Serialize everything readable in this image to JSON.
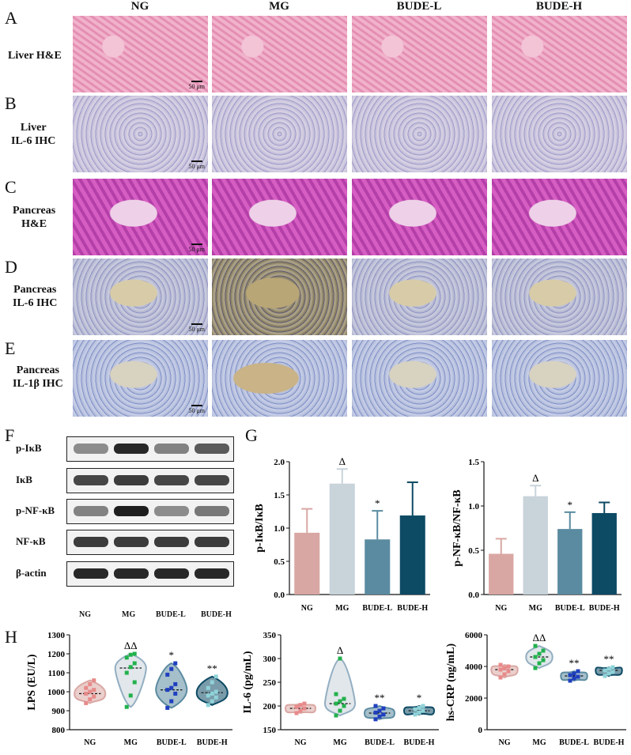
{
  "panel_letters": [
    "A",
    "B",
    "C",
    "D",
    "E",
    "F",
    "G",
    "H"
  ],
  "columns": [
    "NG",
    "MG",
    "BUDE-L",
    "BUDE-H"
  ],
  "rows": [
    {
      "l1": "Liver H&E",
      "l2": ""
    },
    {
      "l1": "Liver",
      "l2": "IL-6 IHC"
    },
    {
      "l1": "Pancreas",
      "l2": "H&E"
    },
    {
      "l1": "Pancreas",
      "l2": "IL-6 IHC"
    },
    {
      "l1": "Pancreas",
      "l2": "IL-1β IHC"
    }
  ],
  "scale_bar": "50 μm",
  "western": {
    "bands": [
      "p-IκB",
      "IκB",
      "p-NF-κB",
      "NF-κB",
      "β-actin"
    ],
    "lanes": [
      "NG",
      "MG",
      "BUDE-L",
      "BUDE-H"
    ]
  },
  "colors": {
    "NG": "#d9a7a3",
    "MG": "#c8d3da",
    "BUDE-L": "#5b8ba0",
    "BUDE-H": "#0d4a64"
  },
  "chart_data": [
    {
      "type": "bar",
      "ylabel": "p-IκB/IκB",
      "categories": [
        "NG",
        "MG",
        "BUDE-L",
        "BUDE-H"
      ],
      "values": [
        0.93,
        1.67,
        0.83,
        1.19
      ],
      "errors": [
        0.36,
        0.22,
        0.43,
        0.5
      ],
      "ylim": [
        0,
        2.0
      ],
      "yticks": [
        "0.0",
        "0.5",
        "1.0",
        "1.5",
        "2.0"
      ],
      "marks": [
        "",
        "Δ",
        "*",
        ""
      ]
    },
    {
      "type": "bar",
      "ylabel": "p-NF-κB/NF-κB",
      "categories": [
        "NG",
        "MG",
        "BUDE-L",
        "BUDE-H"
      ],
      "values": [
        0.46,
        1.11,
        0.74,
        0.92
      ],
      "errors": [
        0.17,
        0.12,
        0.19,
        0.12
      ],
      "ylim": [
        0,
        1.5
      ],
      "yticks": [
        "0.0",
        "0.5",
        "1.0",
        "1.5"
      ],
      "marks": [
        "",
        "Δ",
        "*",
        ""
      ]
    },
    {
      "type": "violin",
      "ylabel": "LPS (EU/L)",
      "categories": [
        "NG",
        "MG",
        "BUDE-L",
        "BUDE-H"
      ],
      "ylim": [
        800,
        1300
      ],
      "yticks": [
        "800",
        "900",
        "1000",
        "1100",
        "1200",
        "1300"
      ],
      "medians": [
        990,
        1125,
        1010,
        995
      ],
      "points": [
        [
          940,
          960,
          975,
          990,
          1000,
          1010,
          1020,
          1040,
          1060
        ],
        [
          920,
          980,
          1050,
          1100,
          1130,
          1150,
          1180,
          1195,
          1200
        ],
        [
          915,
          950,
          990,
          1010,
          1020,
          1040,
          1090,
          1120,
          1150
        ],
        [
          930,
          950,
          970,
          980,
          990,
          1000,
          1020,
          1050,
          1080
        ]
      ],
      "marks": [
        "",
        "ΔΔ",
        "*",
        "**"
      ]
    },
    {
      "type": "violin",
      "ylabel": "IL-6 (pg/mL)",
      "categories": [
        "NG",
        "MG",
        "BUDE-L",
        "BUDE-H"
      ],
      "ylim": [
        150,
        350
      ],
      "yticks": [
        "150",
        "200",
        "250",
        "300",
        "350"
      ],
      "medians": [
        195,
        205,
        185,
        190
      ],
      "points": [
        [
          185,
          190,
          195,
          198,
          202,
          205
        ],
        [
          180,
          190,
          200,
          205,
          210,
          215,
          225,
          300
        ],
        [
          172,
          178,
          182,
          186,
          190,
          195,
          200
        ],
        [
          182,
          186,
          190,
          193,
          196,
          200
        ]
      ],
      "marks": [
        "",
        "Δ",
        "**",
        "*"
      ]
    },
    {
      "type": "violin",
      "ylabel": "hs-CRP (ng/mL)",
      "categories": [
        "NG",
        "MG",
        "BUDE-L",
        "BUDE-H"
      ],
      "ylim": [
        0,
        6000
      ],
      "yticks": [
        "0",
        "2000",
        "4000",
        "6000"
      ],
      "medians": [
        3800,
        4600,
        3400,
        3750
      ],
      "points": [
        [
          3300,
          3500,
          3700,
          3800,
          3900,
          4000,
          4100
        ],
        [
          3900,
          4200,
          4400,
          4600,
          4800,
          5000,
          5300
        ],
        [
          3100,
          3250,
          3350,
          3450,
          3550,
          3700
        ],
        [
          3400,
          3550,
          3650,
          3750,
          3850,
          3950
        ]
      ],
      "marks": [
        "",
        "ΔΔ",
        "**",
        "**"
      ]
    }
  ]
}
